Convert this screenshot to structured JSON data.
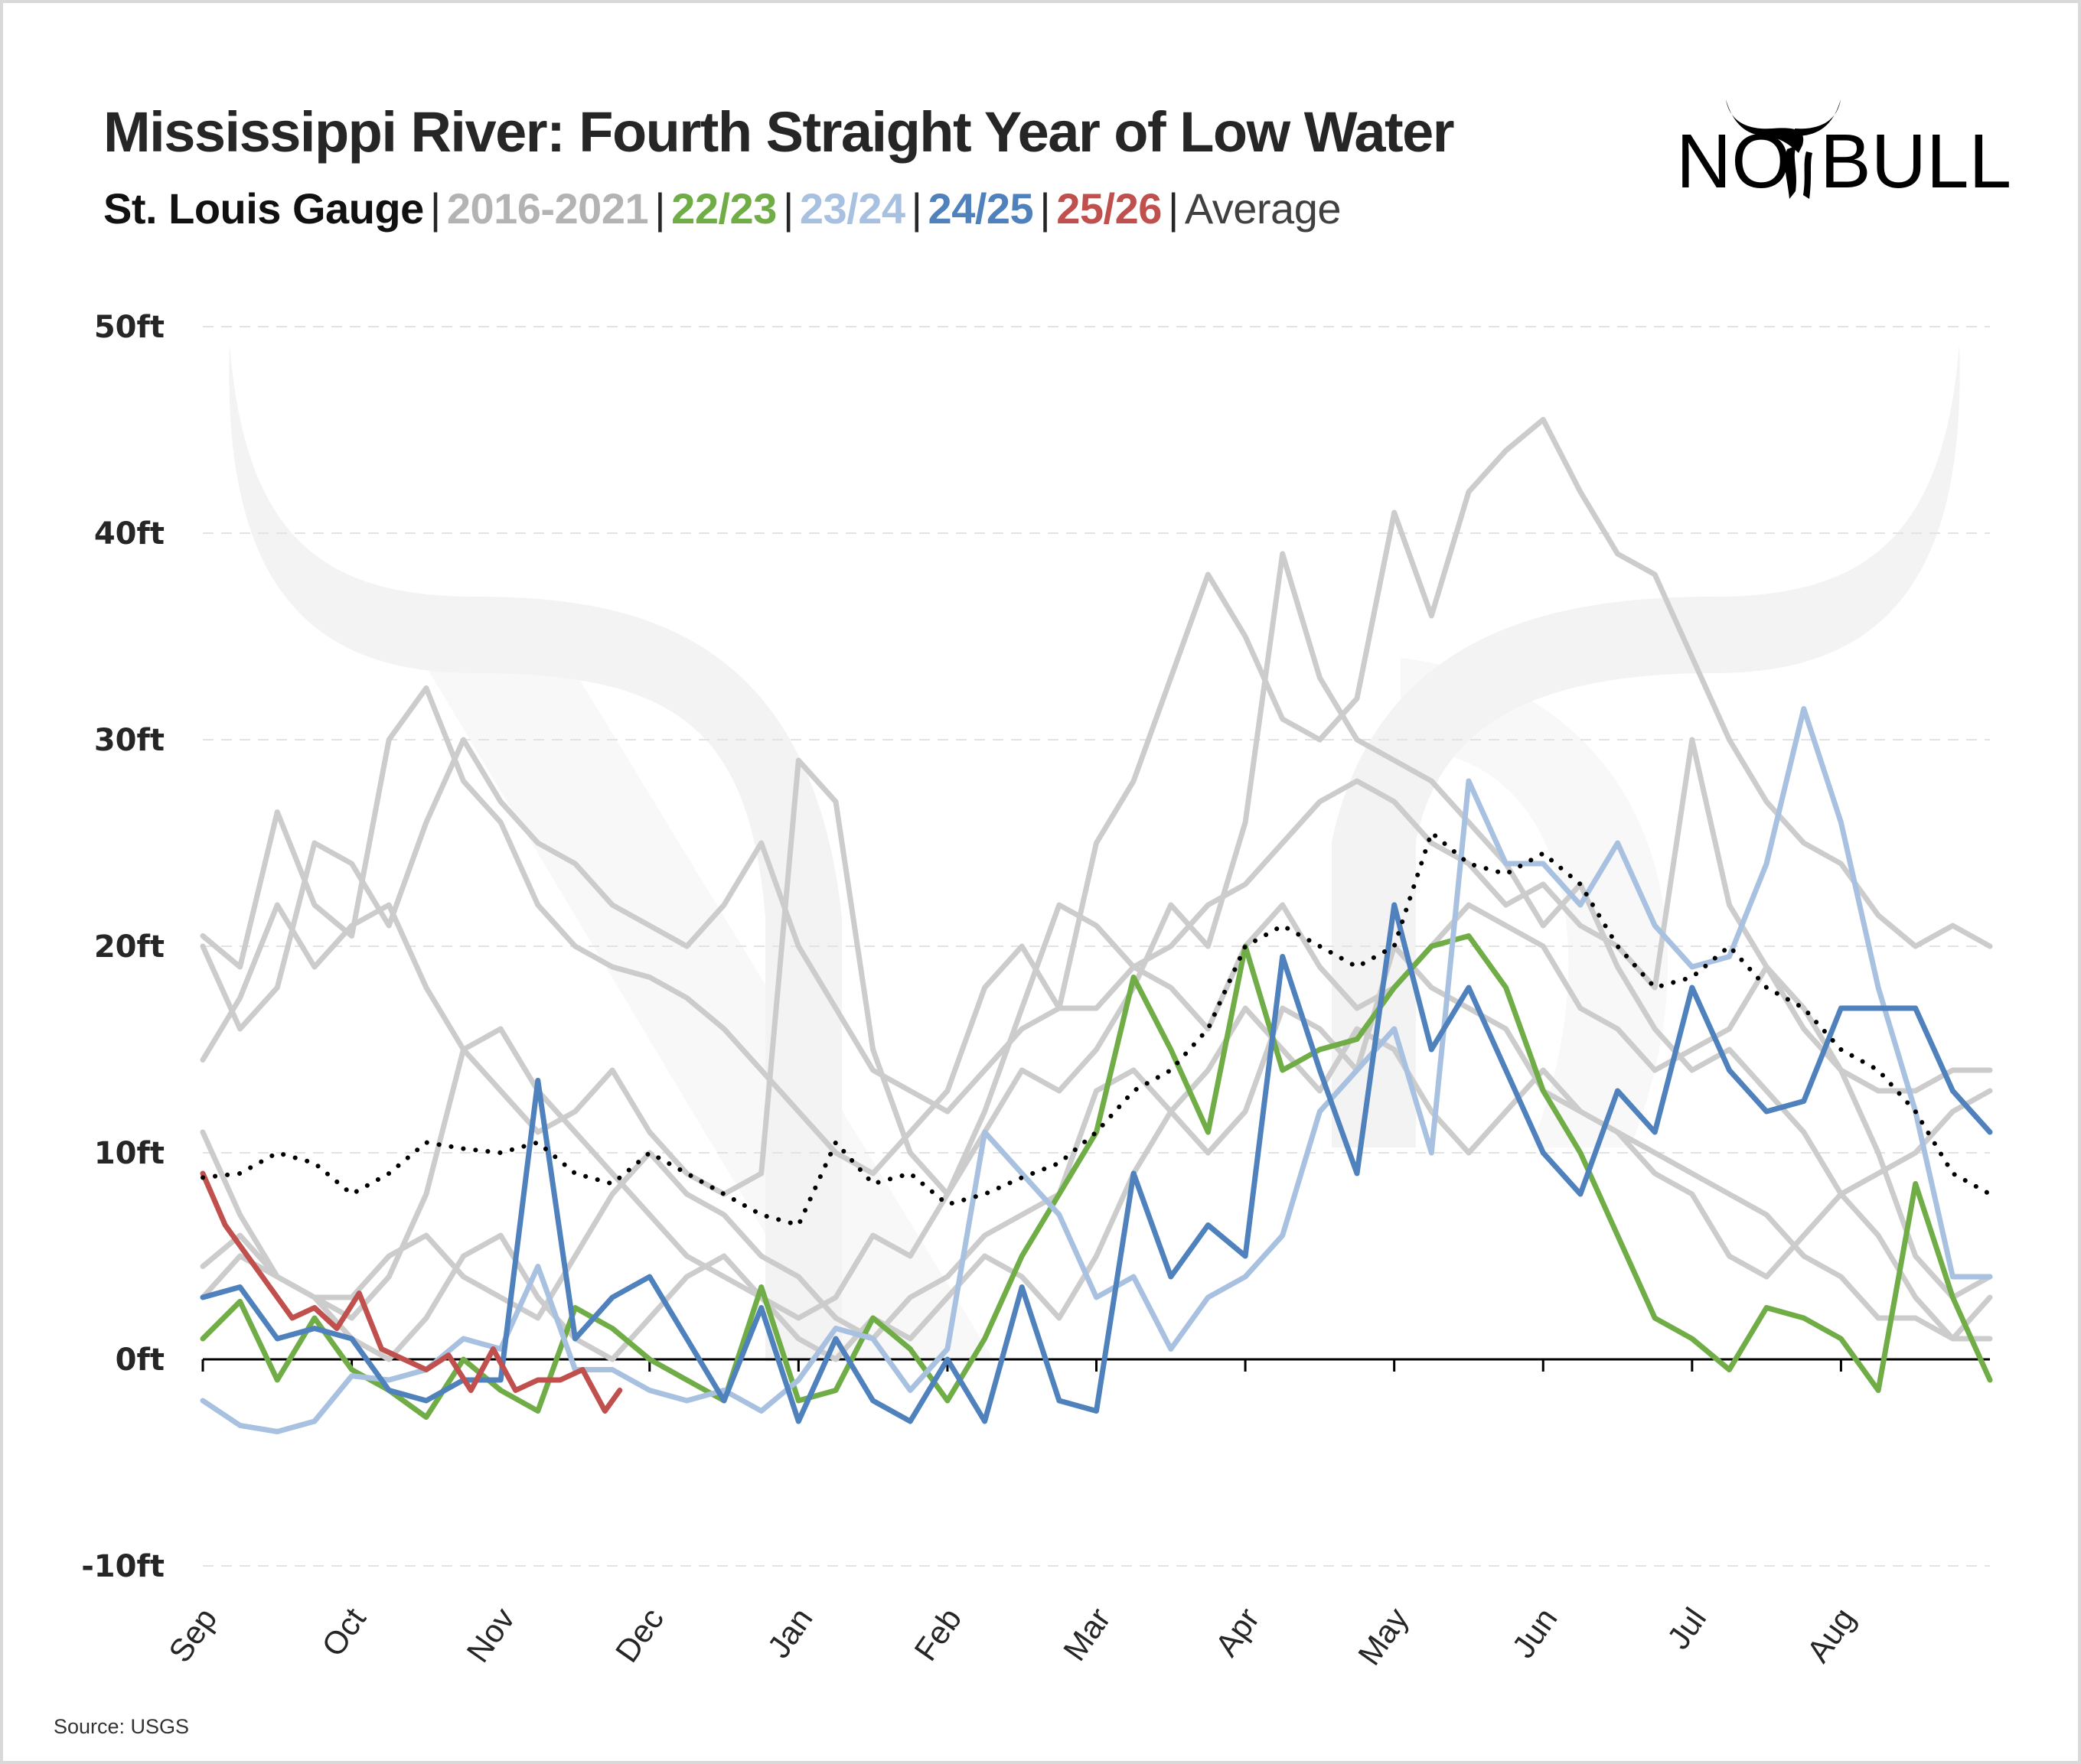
{
  "header": {
    "title": "Mississippi River: Fourth Straight Year of Low Water",
    "subtitle_parts": [
      {
        "text": "St. Louis Gauge",
        "color": "#111111"
      },
      {
        "text": "2016-2021",
        "color": "#b3b3b3"
      },
      {
        "text": "22/23",
        "color": "#70ad47"
      },
      {
        "text": "23/24",
        "color": "#a9c1e0"
      },
      {
        "text": "24/25",
        "color": "#4f81bd"
      },
      {
        "text": "25/26",
        "color": "#c0504d"
      },
      {
        "text": "Average",
        "color": "#404040"
      }
    ],
    "separator": "|"
  },
  "logo": {
    "text_left": "NO",
    "text_right": "BULL",
    "icon": "bull-horns-icon"
  },
  "footer": {
    "source": "Source: USGS"
  },
  "chart_data": {
    "type": "line",
    "title": "Mississippi River: Fourth Straight Year of Low Water",
    "subtitle": "St. Louis Gauge",
    "xlabel": "",
    "ylabel": "",
    "x_unit": "month index from Sep 1 (0 = Sep, 12 = end of Aug)",
    "categories": [
      "Sep",
      "Oct",
      "Nov",
      "Dec",
      "Jan",
      "Feb",
      "Mar",
      "Apr",
      "May",
      "Jun",
      "Jul",
      "Aug"
    ],
    "yticks": [
      -10,
      0,
      10,
      20,
      30,
      40,
      50
    ],
    "ytick_labels": [
      "-10ft",
      "0ft",
      "10ft",
      "20ft",
      "30ft",
      "40ft",
      "50ft"
    ],
    "ylim": [
      -10,
      50
    ],
    "xlim": [
      0,
      12
    ],
    "grid": "horizontal dashed",
    "legend": "subtitle (color-coded)",
    "series": [
      {
        "name": "2016-2021 (a)",
        "group": "historical",
        "color": "#cccccc",
        "x": [
          0,
          0.25,
          0.5,
          0.75,
          1,
          1.25,
          1.5,
          1.75,
          2,
          2.25,
          2.5,
          2.75,
          3,
          3.25,
          3.5,
          3.75,
          4,
          4.25,
          4.5,
          4.75,
          5,
          5.25,
          5.5,
          5.75,
          6,
          6.25,
          6.5,
          6.75,
          7,
          7.25,
          7.5,
          7.75,
          8,
          8.25,
          8.5,
          8.75,
          9,
          9.25,
          9.5,
          9.75,
          10,
          10.25,
          10.5,
          10.75,
          11,
          11.25,
          11.5,
          11.75,
          12
        ],
        "y": [
          20.5,
          19,
          26.5,
          22,
          20.5,
          30,
          32.5,
          28,
          26,
          22,
          20,
          19,
          18.5,
          17.5,
          16,
          14,
          12,
          10,
          9,
          11,
          13,
          18,
          20,
          17,
          25,
          28,
          33,
          38,
          35,
          31,
          30,
          32,
          41,
          36,
          42,
          44,
          45.5,
          42,
          39,
          38,
          34,
          30,
          27,
          25,
          24,
          21.5,
          20,
          21,
          20
        ]
      },
      {
        "name": "2016-2021 (b)",
        "group": "historical",
        "color": "#cccccc",
        "x": [
          0,
          0.25,
          0.5,
          0.75,
          1,
          1.25,
          1.5,
          1.75,
          2,
          2.25,
          2.5,
          2.75,
          3,
          3.25,
          3.5,
          3.75,
          4,
          4.25,
          4.5,
          4.75,
          5,
          5.25,
          5.5,
          5.75,
          6,
          6.25,
          6.5,
          6.75,
          7,
          7.25,
          7.5,
          7.75,
          8,
          8.25,
          8.5,
          8.75,
          9,
          9.25,
          9.5,
          9.75,
          10,
          10.25,
          10.5,
          10.75,
          11,
          11.25,
          11.5,
          11.75,
          12
        ],
        "y": [
          14.5,
          17.5,
          22,
          19,
          21,
          22,
          18,
          15,
          13,
          11,
          12,
          14,
          11,
          9,
          8,
          9,
          29,
          27,
          15,
          10,
          8,
          11,
          14,
          13,
          15,
          18,
          22,
          20,
          26,
          39,
          33,
          30,
          29,
          28,
          26,
          24,
          21,
          23,
          19,
          16,
          14,
          15,
          13,
          11,
          8,
          9,
          10,
          12,
          13
        ]
      },
      {
        "name": "2016-2021 (c)",
        "group": "historical",
        "color": "#cccccc",
        "x": [
          0,
          0.25,
          0.5,
          0.75,
          1,
          1.25,
          1.5,
          1.75,
          2,
          2.25,
          2.5,
          2.75,
          3,
          3.25,
          3.5,
          3.75,
          4,
          4.25,
          4.5,
          4.75,
          5,
          5.25,
          5.5,
          5.75,
          6,
          6.25,
          6.5,
          6.75,
          7,
          7.25,
          7.5,
          7.75,
          8,
          8.25,
          8.5,
          8.75,
          9,
          9.25,
          9.5,
          9.75,
          10,
          10.25,
          10.5,
          10.75,
          11,
          11.25,
          11.5,
          11.75,
          12
        ],
        "y": [
          20,
          16,
          18,
          25,
          24,
          21,
          26,
          30,
          27,
          25,
          24,
          22,
          21,
          20,
          22,
          25,
          20,
          17,
          14,
          13,
          12,
          14,
          16,
          17,
          17,
          19,
          20,
          22,
          23,
          25,
          27,
          28,
          27,
          25,
          24,
          22,
          23,
          21,
          20,
          18,
          30,
          22,
          19,
          16,
          14,
          13,
          13,
          14,
          14
        ]
      },
      {
        "name": "2016-2021 (d)",
        "group": "historical",
        "color": "#cccccc",
        "x": [
          0,
          0.25,
          0.5,
          0.75,
          1,
          1.25,
          1.5,
          1.75,
          2,
          2.25,
          2.5,
          2.75,
          3,
          3.25,
          3.5,
          3.75,
          4,
          4.25,
          4.5,
          4.75,
          5,
          5.25,
          5.5,
          5.75,
          6,
          6.25,
          6.5,
          6.75,
          7,
          7.25,
          7.5,
          7.75,
          8,
          8.25,
          8.5,
          8.75,
          9,
          9.25,
          9.5,
          9.75,
          10,
          10.25,
          10.5,
          10.75,
          11,
          11.25,
          11.5,
          11.75,
          12
        ],
        "y": [
          11,
          7,
          4,
          3,
          2,
          4,
          8,
          15,
          16,
          13,
          11,
          9,
          7,
          5,
          4,
          3,
          2,
          3,
          6,
          5,
          8,
          12,
          17,
          22,
          21,
          19,
          18,
          16,
          20,
          22,
          19,
          17,
          18,
          20,
          22,
          21,
          20,
          17,
          16,
          14,
          15,
          16,
          19,
          17,
          14,
          10,
          5,
          3,
          4
        ]
      },
      {
        "name": "2016-2021 (e)",
        "group": "historical",
        "color": "#cccccc",
        "x": [
          0,
          0.25,
          0.5,
          0.75,
          1,
          1.25,
          1.5,
          1.75,
          2,
          2.25,
          2.5,
          2.75,
          3,
          3.25,
          3.5,
          3.75,
          4,
          4.25,
          4.5,
          4.75,
          5,
          5.25,
          5.5,
          5.75,
          6,
          6.25,
          6.5,
          6.75,
          7,
          7.25,
          7.5,
          7.75,
          8,
          8.25,
          8.5,
          8.75,
          9,
          9.25,
          9.5,
          9.75,
          10,
          10.25,
          10.5,
          10.75,
          11,
          11.25,
          11.5,
          11.75,
          12
        ],
        "y": [
          4.5,
          6,
          4,
          3,
          3,
          5,
          6,
          4,
          3,
          2,
          5,
          8,
          10,
          8,
          7,
          5,
          4,
          2,
          1,
          3,
          4,
          6,
          7,
          8,
          13,
          14,
          12,
          10,
          12,
          17,
          16,
          14,
          20,
          18,
          17,
          16,
          13,
          12,
          11,
          9,
          8,
          5,
          4,
          6,
          8,
          6,
          3,
          1,
          3
        ]
      },
      {
        "name": "2016-2021 (f)",
        "group": "historical",
        "color": "#cccccc",
        "x": [
          0,
          0.25,
          0.5,
          0.75,
          1,
          1.25,
          1.5,
          1.75,
          2,
          2.25,
          2.5,
          2.75,
          3,
          3.25,
          3.5,
          3.75,
          4,
          4.25,
          4.5,
          4.75,
          5,
          5.25,
          5.5,
          5.75,
          6,
          6.25,
          6.5,
          6.75,
          7,
          7.25,
          7.5,
          7.75,
          8,
          8.25,
          8.5,
          8.75,
          9,
          9.25,
          9.5,
          9.75,
          10,
          10.25,
          10.5,
          10.75,
          11,
          11.25,
          11.5,
          11.75,
          12
        ],
        "y": [
          3,
          5,
          4,
          3,
          1,
          0,
          2,
          5,
          6,
          3,
          1,
          0,
          2,
          4,
          5,
          3,
          1,
          0,
          2,
          1,
          3,
          5,
          4,
          2,
          5,
          9,
          12,
          14,
          17,
          15,
          13,
          16,
          15,
          12,
          10,
          12,
          14,
          12,
          11,
          10,
          9,
          8,
          7,
          5,
          4,
          2,
          2,
          1,
          1
        ]
      },
      {
        "name": "22/23",
        "group": "highlight",
        "color": "#70ad47",
        "x": [
          0,
          0.25,
          0.5,
          0.75,
          1,
          1.25,
          1.5,
          1.75,
          2,
          2.25,
          2.5,
          2.75,
          3,
          3.25,
          3.5,
          3.75,
          4,
          4.25,
          4.5,
          4.75,
          5,
          5.25,
          5.5,
          5.75,
          6,
          6.25,
          6.5,
          6.75,
          7,
          7.25,
          7.5,
          7.75,
          8,
          8.25,
          8.5,
          8.75,
          9,
          9.25,
          9.5,
          9.75,
          10,
          10.25,
          10.5,
          10.75,
          11,
          11.25,
          11.5,
          11.75,
          12
        ],
        "y": [
          1,
          2.8,
          -1,
          2,
          -0.5,
          -1.5,
          -2.8,
          0,
          -1.5,
          -2.5,
          2.5,
          1.5,
          0,
          -1,
          -2,
          3.5,
          -2,
          -1.5,
          2,
          0.5,
          -2,
          1,
          5,
          8,
          11,
          18.5,
          15,
          11,
          20,
          14,
          15,
          15.5,
          18,
          20,
          20.5,
          18,
          13,
          10,
          6,
          2,
          1,
          -0.5,
          2.5,
          2,
          1,
          -1.5,
          8.5,
          3,
          -1
        ]
      },
      {
        "name": "23/24",
        "group": "highlight",
        "color": "#a9c1e0",
        "x": [
          0,
          0.25,
          0.5,
          0.75,
          1,
          1.25,
          1.5,
          1.75,
          2,
          2.25,
          2.5,
          2.75,
          3,
          3.25,
          3.5,
          3.75,
          4,
          4.25,
          4.5,
          4.75,
          5,
          5.25,
          5.5,
          5.75,
          6,
          6.25,
          6.5,
          6.75,
          7,
          7.25,
          7.5,
          7.75,
          8,
          8.25,
          8.5,
          8.75,
          9,
          9.25,
          9.5,
          9.75,
          10,
          10.25,
          10.5,
          10.75,
          11,
          11.25,
          11.5,
          11.75,
          12
        ],
        "y": [
          -2,
          -3.2,
          -3.5,
          -3,
          -0.8,
          -1,
          -0.5,
          1,
          0.5,
          4.5,
          -0.5,
          -0.5,
          -1.5,
          -2,
          -1.5,
          -2.5,
          -1,
          1.5,
          1,
          -1.5,
          0.5,
          11,
          9,
          7,
          3,
          4,
          0.5,
          3,
          4,
          6,
          12,
          14,
          16,
          10,
          28,
          24,
          24,
          22,
          25,
          21,
          19,
          19.5,
          24,
          31.5,
          26,
          18,
          12,
          4,
          4
        ]
      },
      {
        "name": "24/25",
        "group": "highlight",
        "color": "#4f81bd",
        "x": [
          0,
          0.25,
          0.5,
          0.75,
          1,
          1.25,
          1.5,
          1.75,
          2,
          2.25,
          2.5,
          2.75,
          3,
          3.25,
          3.5,
          3.75,
          4,
          4.25,
          4.5,
          4.75,
          5,
          5.25,
          5.5,
          5.75,
          6,
          6.25,
          6.5,
          6.75,
          7,
          7.25,
          7.5,
          7.75,
          8,
          8.25,
          8.5,
          8.75,
          9,
          9.25,
          9.5,
          9.75,
          10,
          10.25,
          10.5,
          10.75,
          11,
          11.25,
          11.5,
          11.75,
          12
        ],
        "y": [
          3,
          3.5,
          1,
          1.5,
          1,
          -1.5,
          -2,
          -1,
          -1,
          13.5,
          1,
          3,
          4,
          1,
          -2,
          2.5,
          -3,
          1,
          -2,
          -3,
          0,
          -3,
          3.5,
          -2,
          -2.5,
          9,
          4,
          6.5,
          5,
          19.5,
          14,
          9,
          22,
          15,
          18,
          14,
          10,
          8,
          13,
          11,
          18,
          14,
          12,
          12.5,
          17,
          17,
          17,
          13,
          11
        ]
      },
      {
        "name": "25/26",
        "group": "highlight",
        "color": "#c0504d",
        "x": [
          0,
          0.15,
          0.3,
          0.45,
          0.6,
          0.75,
          0.9,
          1.05,
          1.2,
          1.35,
          1.5,
          1.65,
          1.8,
          1.95,
          2.1,
          2.25,
          2.4,
          2.55,
          2.7,
          2.8
        ],
        "y": [
          9,
          6.5,
          5,
          3.5,
          2,
          2.5,
          1.5,
          3.2,
          0.5,
          0,
          -0.5,
          0.2,
          -1.5,
          0.5,
          -1.5,
          -1,
          -1,
          -0.5,
          -2.5,
          -1.5
        ]
      },
      {
        "name": "Average",
        "group": "average",
        "color": "#000000",
        "x": [
          0,
          0.25,
          0.5,
          0.75,
          1,
          1.25,
          1.5,
          1.75,
          2,
          2.25,
          2.5,
          2.75,
          3,
          3.25,
          3.5,
          3.75,
          4,
          4.25,
          4.5,
          4.75,
          5,
          5.25,
          5.5,
          5.75,
          6,
          6.25,
          6.5,
          6.75,
          7,
          7.25,
          7.5,
          7.75,
          8,
          8.25,
          8.5,
          8.75,
          9,
          9.25,
          9.5,
          9.75,
          10,
          10.25,
          10.5,
          10.75,
          11,
          11.25,
          11.5,
          11.75,
          12
        ],
        "y": [
          8.8,
          9,
          10,
          9.5,
          8,
          9,
          10.5,
          10.2,
          10,
          10.5,
          9,
          8.5,
          10,
          9,
          8,
          7,
          6.5,
          10.5,
          8.5,
          9,
          7.5,
          8,
          8.8,
          9.5,
          11,
          13,
          14,
          16,
          20,
          21,
          20,
          19,
          20,
          25.5,
          24,
          23.5,
          24.5,
          23,
          20,
          18,
          18.5,
          20,
          18,
          17,
          15,
          14,
          12,
          9,
          8
        ]
      }
    ]
  }
}
